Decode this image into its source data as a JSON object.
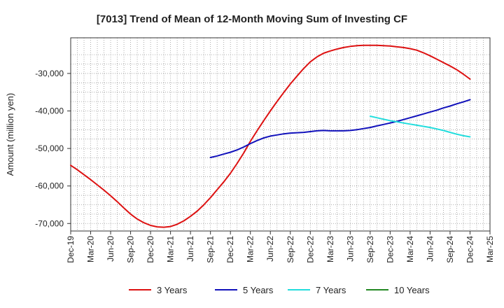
{
  "chart_data": {
    "type": "line",
    "title": "[7013]  Trend of Mean of 12-Month Moving Sum of Investing CF",
    "xlabel": "",
    "ylabel": "Amount (million yen)",
    "ylim": [
      -72000,
      -20500
    ],
    "yticks": [
      -70000,
      -60000,
      -50000,
      -40000,
      -30000
    ],
    "ytick_labels": [
      "-70,000",
      "-60,000",
      "-50,000",
      "-40,000",
      "-30,000"
    ],
    "x_start": "2019-12",
    "x_end": "2025-03",
    "xticks": [
      "Dec-19",
      "Mar-20",
      "Jun-20",
      "Sep-20",
      "Dec-20",
      "Mar-21",
      "Jun-21",
      "Sep-21",
      "Dec-21",
      "Mar-22",
      "Jun-22",
      "Sep-22",
      "Dec-22",
      "Mar-23",
      "Jun-23",
      "Sep-23",
      "Dec-23",
      "Mar-24",
      "Jun-24",
      "Sep-24",
      "Dec-24",
      "Mar-25"
    ],
    "grid": true,
    "legend_position": "bottom",
    "series": [
      {
        "name": "3 Years",
        "color": "#dd1111",
        "x": [
          "2019-12",
          "2020-01",
          "2020-02",
          "2020-03",
          "2020-04",
          "2020-05",
          "2020-06",
          "2020-07",
          "2020-08",
          "2020-09",
          "2020-10",
          "2020-11",
          "2020-12",
          "2021-01",
          "2021-02",
          "2021-03",
          "2021-04",
          "2021-05",
          "2021-06",
          "2021-07",
          "2021-08",
          "2021-09",
          "2021-10",
          "2021-11",
          "2021-12",
          "2022-01",
          "2022-02",
          "2022-03",
          "2022-04",
          "2022-05",
          "2022-06",
          "2022-07",
          "2022-08",
          "2022-09",
          "2022-10",
          "2022-11",
          "2022-12",
          "2023-01",
          "2023-02",
          "2023-03",
          "2023-04",
          "2023-05",
          "2023-06",
          "2023-07",
          "2023-08",
          "2023-09",
          "2023-10",
          "2023-11",
          "2023-12",
          "2024-01",
          "2024-02",
          "2024-03",
          "2024-04",
          "2024-05",
          "2024-06",
          "2024-07",
          "2024-08",
          "2024-09",
          "2024-10",
          "2024-11",
          "2024-12"
        ],
        "values": [
          -54500,
          -55700,
          -57000,
          -58300,
          -59700,
          -61100,
          -62600,
          -64200,
          -65900,
          -67500,
          -68800,
          -69800,
          -70500,
          -70900,
          -71000,
          -70800,
          -70200,
          -69300,
          -68100,
          -66700,
          -65000,
          -63100,
          -61000,
          -58900,
          -56600,
          -54000,
          -51200,
          -48100,
          -45300,
          -42600,
          -40000,
          -37500,
          -35100,
          -32800,
          -30700,
          -28700,
          -26900,
          -25600,
          -24600,
          -24000,
          -23500,
          -23100,
          -22800,
          -22600,
          -22500,
          -22500,
          -22500,
          -22600,
          -22700,
          -22900,
          -23100,
          -23400,
          -23800,
          -24500,
          -25300,
          -26200,
          -27100,
          -28000,
          -29000,
          -30200,
          -31500
        ]
      },
      {
        "name": "5 Years",
        "color": "#1111bb",
        "x": [
          "2021-09",
          "2021-10",
          "2021-11",
          "2021-12",
          "2022-01",
          "2022-02",
          "2022-03",
          "2022-04",
          "2022-05",
          "2022-06",
          "2022-07",
          "2022-08",
          "2022-09",
          "2022-10",
          "2022-11",
          "2022-12",
          "2023-01",
          "2023-02",
          "2023-03",
          "2023-04",
          "2023-05",
          "2023-06",
          "2023-07",
          "2023-08",
          "2023-09",
          "2023-10",
          "2023-11",
          "2023-12",
          "2024-01",
          "2024-02",
          "2024-03",
          "2024-04",
          "2024-05",
          "2024-06",
          "2024-07",
          "2024-08",
          "2024-09",
          "2024-10",
          "2024-11",
          "2024-12"
        ],
        "values": [
          -52400,
          -52000,
          -51500,
          -51000,
          -50400,
          -49600,
          -48700,
          -47900,
          -47200,
          -46700,
          -46400,
          -46100,
          -45900,
          -45800,
          -45700,
          -45500,
          -45300,
          -45200,
          -45300,
          -45300,
          -45300,
          -45200,
          -45000,
          -44700,
          -44400,
          -44000,
          -43600,
          -43200,
          -42800,
          -42300,
          -41800,
          -41300,
          -40800,
          -40300,
          -39800,
          -39200,
          -38700,
          -38100,
          -37600,
          -37000
        ]
      },
      {
        "name": "7 Years",
        "color": "#22dddd",
        "x": [
          "2023-09",
          "2023-10",
          "2023-11",
          "2023-12",
          "2024-01",
          "2024-02",
          "2024-03",
          "2024-04",
          "2024-05",
          "2024-06",
          "2024-07",
          "2024-08",
          "2024-09",
          "2024-10",
          "2024-11",
          "2024-12"
        ],
        "values": [
          -41400,
          -41800,
          -42200,
          -42600,
          -42900,
          -43200,
          -43500,
          -43800,
          -44100,
          -44400,
          -44800,
          -45200,
          -45700,
          -46200,
          -46600,
          -46900
        ]
      },
      {
        "name": "10 Years",
        "color": "#228822",
        "x": [],
        "values": []
      }
    ]
  }
}
